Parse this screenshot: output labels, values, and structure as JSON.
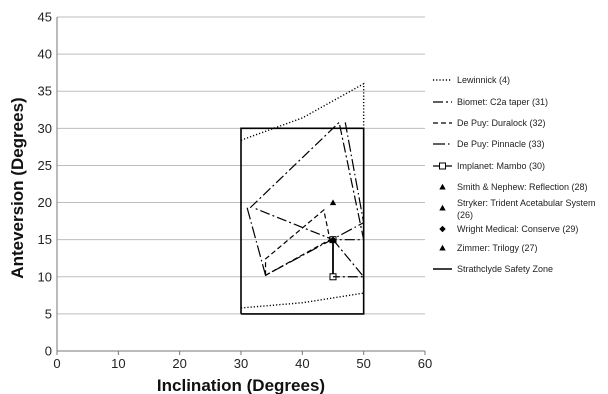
{
  "chart_data": {
    "type": "scatter",
    "xlabel": "Inclination (Degrees)",
    "ylabel": "Anteversion (Degrees)",
    "xlim": [
      0,
      60
    ],
    "ylim": [
      0,
      45
    ],
    "xticks": [
      0,
      10,
      20,
      30,
      40,
      50,
      60
    ],
    "yticks": [
      0,
      5,
      10,
      15,
      20,
      25,
      30,
      35,
      40,
      45
    ],
    "grid": "horizontal",
    "legend_position": "right",
    "series": [
      {
        "name": "Lewinnick (4)",
        "kind": "line",
        "dash": "dotted",
        "points": [
          [
            30,
            28.4
          ],
          [
            40,
            31.4
          ],
          [
            50,
            36
          ],
          [
            50,
            7.8
          ],
          [
            40,
            6.5
          ],
          [
            30,
            5.8
          ]
        ]
      },
      {
        "name": "Biomet: C2a taper (31)",
        "kind": "line",
        "dash": "dashdot",
        "points": [
          [
            31.5,
            19.3
          ],
          [
            46,
            30.8
          ],
          [
            50,
            15
          ],
          [
            45,
            15
          ],
          [
            32,
            19.3
          ]
        ]
      },
      {
        "name": "De Puy: Duralock (32)",
        "kind": "line",
        "dash": "dashed",
        "points": [
          [
            34,
            10.2
          ],
          [
            34,
            12.4
          ],
          [
            43.5,
            19
          ],
          [
            44.5,
            15
          ],
          [
            34,
            10.2
          ]
        ]
      },
      {
        "name": "De Puy: Pinnacle (33)",
        "kind": "line",
        "dash": "longdashdot",
        "points": [
          [
            31,
            19.3
          ],
          [
            34,
            10.2
          ],
          [
            50,
            17.3
          ],
          [
            47,
            30.8
          ]
        ]
      },
      {
        "name": "Implanet: Mambo (30)",
        "kind": "line-marker",
        "marker": "square-open",
        "points": [
          [
            45,
            15
          ],
          [
            45,
            10
          ]
        ]
      },
      {
        "name": "Smith & Nephew: Reflection (28)",
        "kind": "marker",
        "marker": "triangle",
        "points": [
          [
            45,
            20
          ]
        ]
      },
      {
        "name": "Stryker: Trident Acetabular System (26)",
        "kind": "marker",
        "marker": "triangle",
        "points": [
          [
            45,
            15
          ]
        ]
      },
      {
        "name": "Wright Medical: Conserve (29)",
        "kind": "marker",
        "marker": "diamond",
        "points": [
          [
            45,
            15
          ]
        ]
      },
      {
        "name": "Zimmer: Trilogy (27)",
        "kind": "marker",
        "marker": "triangle",
        "points": [
          [
            45,
            15
          ]
        ]
      },
      {
        "name": "Strathclyde Safety Zone",
        "kind": "line",
        "dash": "solid",
        "points": [
          [
            30,
            5
          ],
          [
            50,
            5
          ],
          [
            50,
            30
          ],
          [
            30,
            30
          ],
          [
            30,
            5
          ]
        ]
      }
    ],
    "extra_segments": [
      {
        "series": "Biomet: C2a taper (31)",
        "points": [
          [
            45,
            15
          ],
          [
            50,
            10
          ],
          [
            45,
            10
          ]
        ]
      }
    ]
  },
  "colors": {
    "line": "#000000",
    "grid": "#bdbdbd",
    "text": "#222222"
  }
}
